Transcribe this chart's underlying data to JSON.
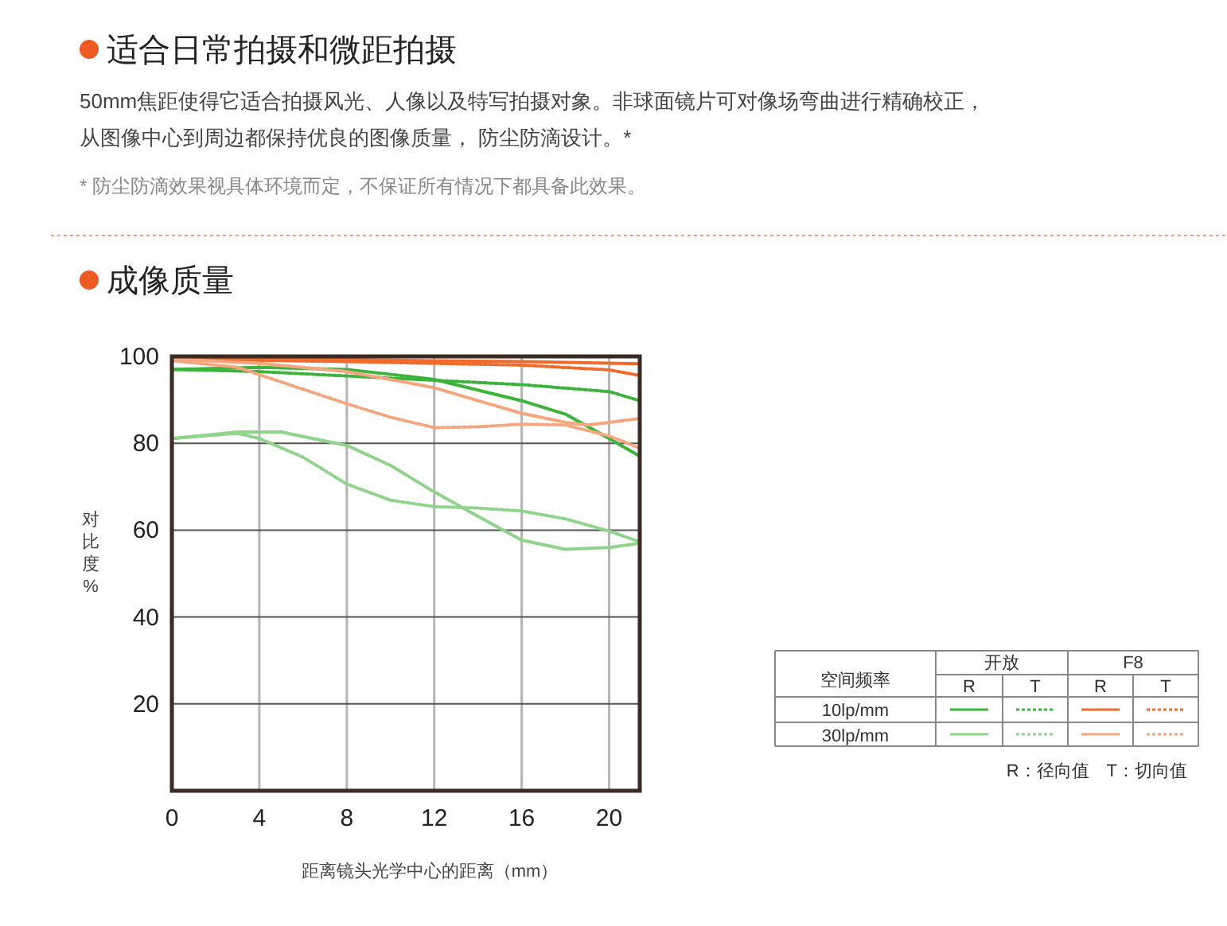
{
  "chart_data": {
    "type": "line",
    "title": "成像质量",
    "xlabel": "距离镜头光学中心的距离（mm）",
    "ylabel": "对比度%",
    "annotations": [
      "适合日常拍摄和微距拍摄",
      "50mm焦距使得它适合拍摄风光、人像以及特写拍摄对象。非球面镜片可对像场弯曲进行精确校正，",
      "从图像中心到周边都保持优良的图像质量， 防尘防滴设计。*",
      "* 防尘防滴效果视具体环境而定，不保证所有情况下都具备此效果。",
      "空间频率",
      "开放",
      "F8",
      "R",
      "T",
      "R",
      "T",
      "10lp/mm",
      "30lp/mm",
      "R：径向值　T：切向值"
    ],
    "xlim": [
      0,
      21.4
    ],
    "ylim": [
      0,
      100
    ],
    "xticks": [
      0,
      4,
      8,
      12,
      16,
      20
    ],
    "yticks": [
      20,
      40,
      60,
      80,
      100
    ],
    "grid": true,
    "series": [
      {
        "color": "#3cb43c",
        "line_style": "solid",
        "x": [
          0,
          4,
          8,
          12,
          16,
          18,
          20,
          21.4
        ],
        "values": [
          97,
          97.5,
          97,
          94.7,
          89.8,
          86.7,
          81.1,
          77
        ]
      },
      {
        "color": "#3cb43c",
        "line_style": "dotted",
        "x": [
          0,
          4,
          8,
          12,
          16,
          20,
          21.4
        ],
        "values": [
          97,
          96.5,
          95.5,
          94.5,
          93.5,
          91.9,
          89.8
        ]
      },
      {
        "color": "#f26a2a",
        "line_style": "solid",
        "x": [
          0,
          8,
          12,
          16,
          21.4
        ],
        "values": [
          99.6,
          99.3,
          99,
          98.8,
          98.3
        ]
      },
      {
        "color": "#f26a2a",
        "line_style": "dotted",
        "x": [
          0,
          8,
          16,
          20,
          21.4
        ],
        "values": [
          99.4,
          98.8,
          98,
          96.9,
          95.6
        ]
      },
      {
        "color": "#8fd48a",
        "line_style": "solid",
        "x": [
          0,
          3,
          5,
          8,
          10,
          12,
          14,
          16,
          18,
          20,
          21.4
        ],
        "values": [
          81.1,
          82.6,
          82.6,
          79.5,
          74.9,
          68.8,
          63.2,
          57.7,
          55.6,
          56,
          57
        ]
      },
      {
        "color": "#8fd48a",
        "line_style": "dotted",
        "x": [
          0,
          3,
          4,
          6,
          8,
          10,
          12,
          14,
          16,
          18,
          20,
          21.4
        ],
        "values": [
          81.1,
          82.3,
          81.1,
          76.8,
          70.6,
          66.9,
          65.4,
          65.1,
          64.4,
          62.6,
          59.8,
          57.3
        ]
      },
      {
        "color": "#f5a67e",
        "line_style": "solid",
        "x": [
          0,
          4,
          8,
          10,
          12,
          14,
          16,
          18,
          19,
          20,
          21.4
        ],
        "values": [
          99.4,
          98.4,
          96.5,
          94.7,
          92.8,
          89.8,
          86.9,
          84.8,
          84.2,
          84.8,
          85.7
        ]
      },
      {
        "color": "#f5a67e",
        "line_style": "dotted",
        "x": [
          0,
          3,
          5,
          8,
          10,
          12,
          14,
          16,
          18,
          20,
          21.4
        ],
        "values": [
          99,
          97.5,
          94.1,
          89.1,
          86,
          83.6,
          83.8,
          84.4,
          84.2,
          81.7,
          78.9
        ]
      }
    ]
  }
}
